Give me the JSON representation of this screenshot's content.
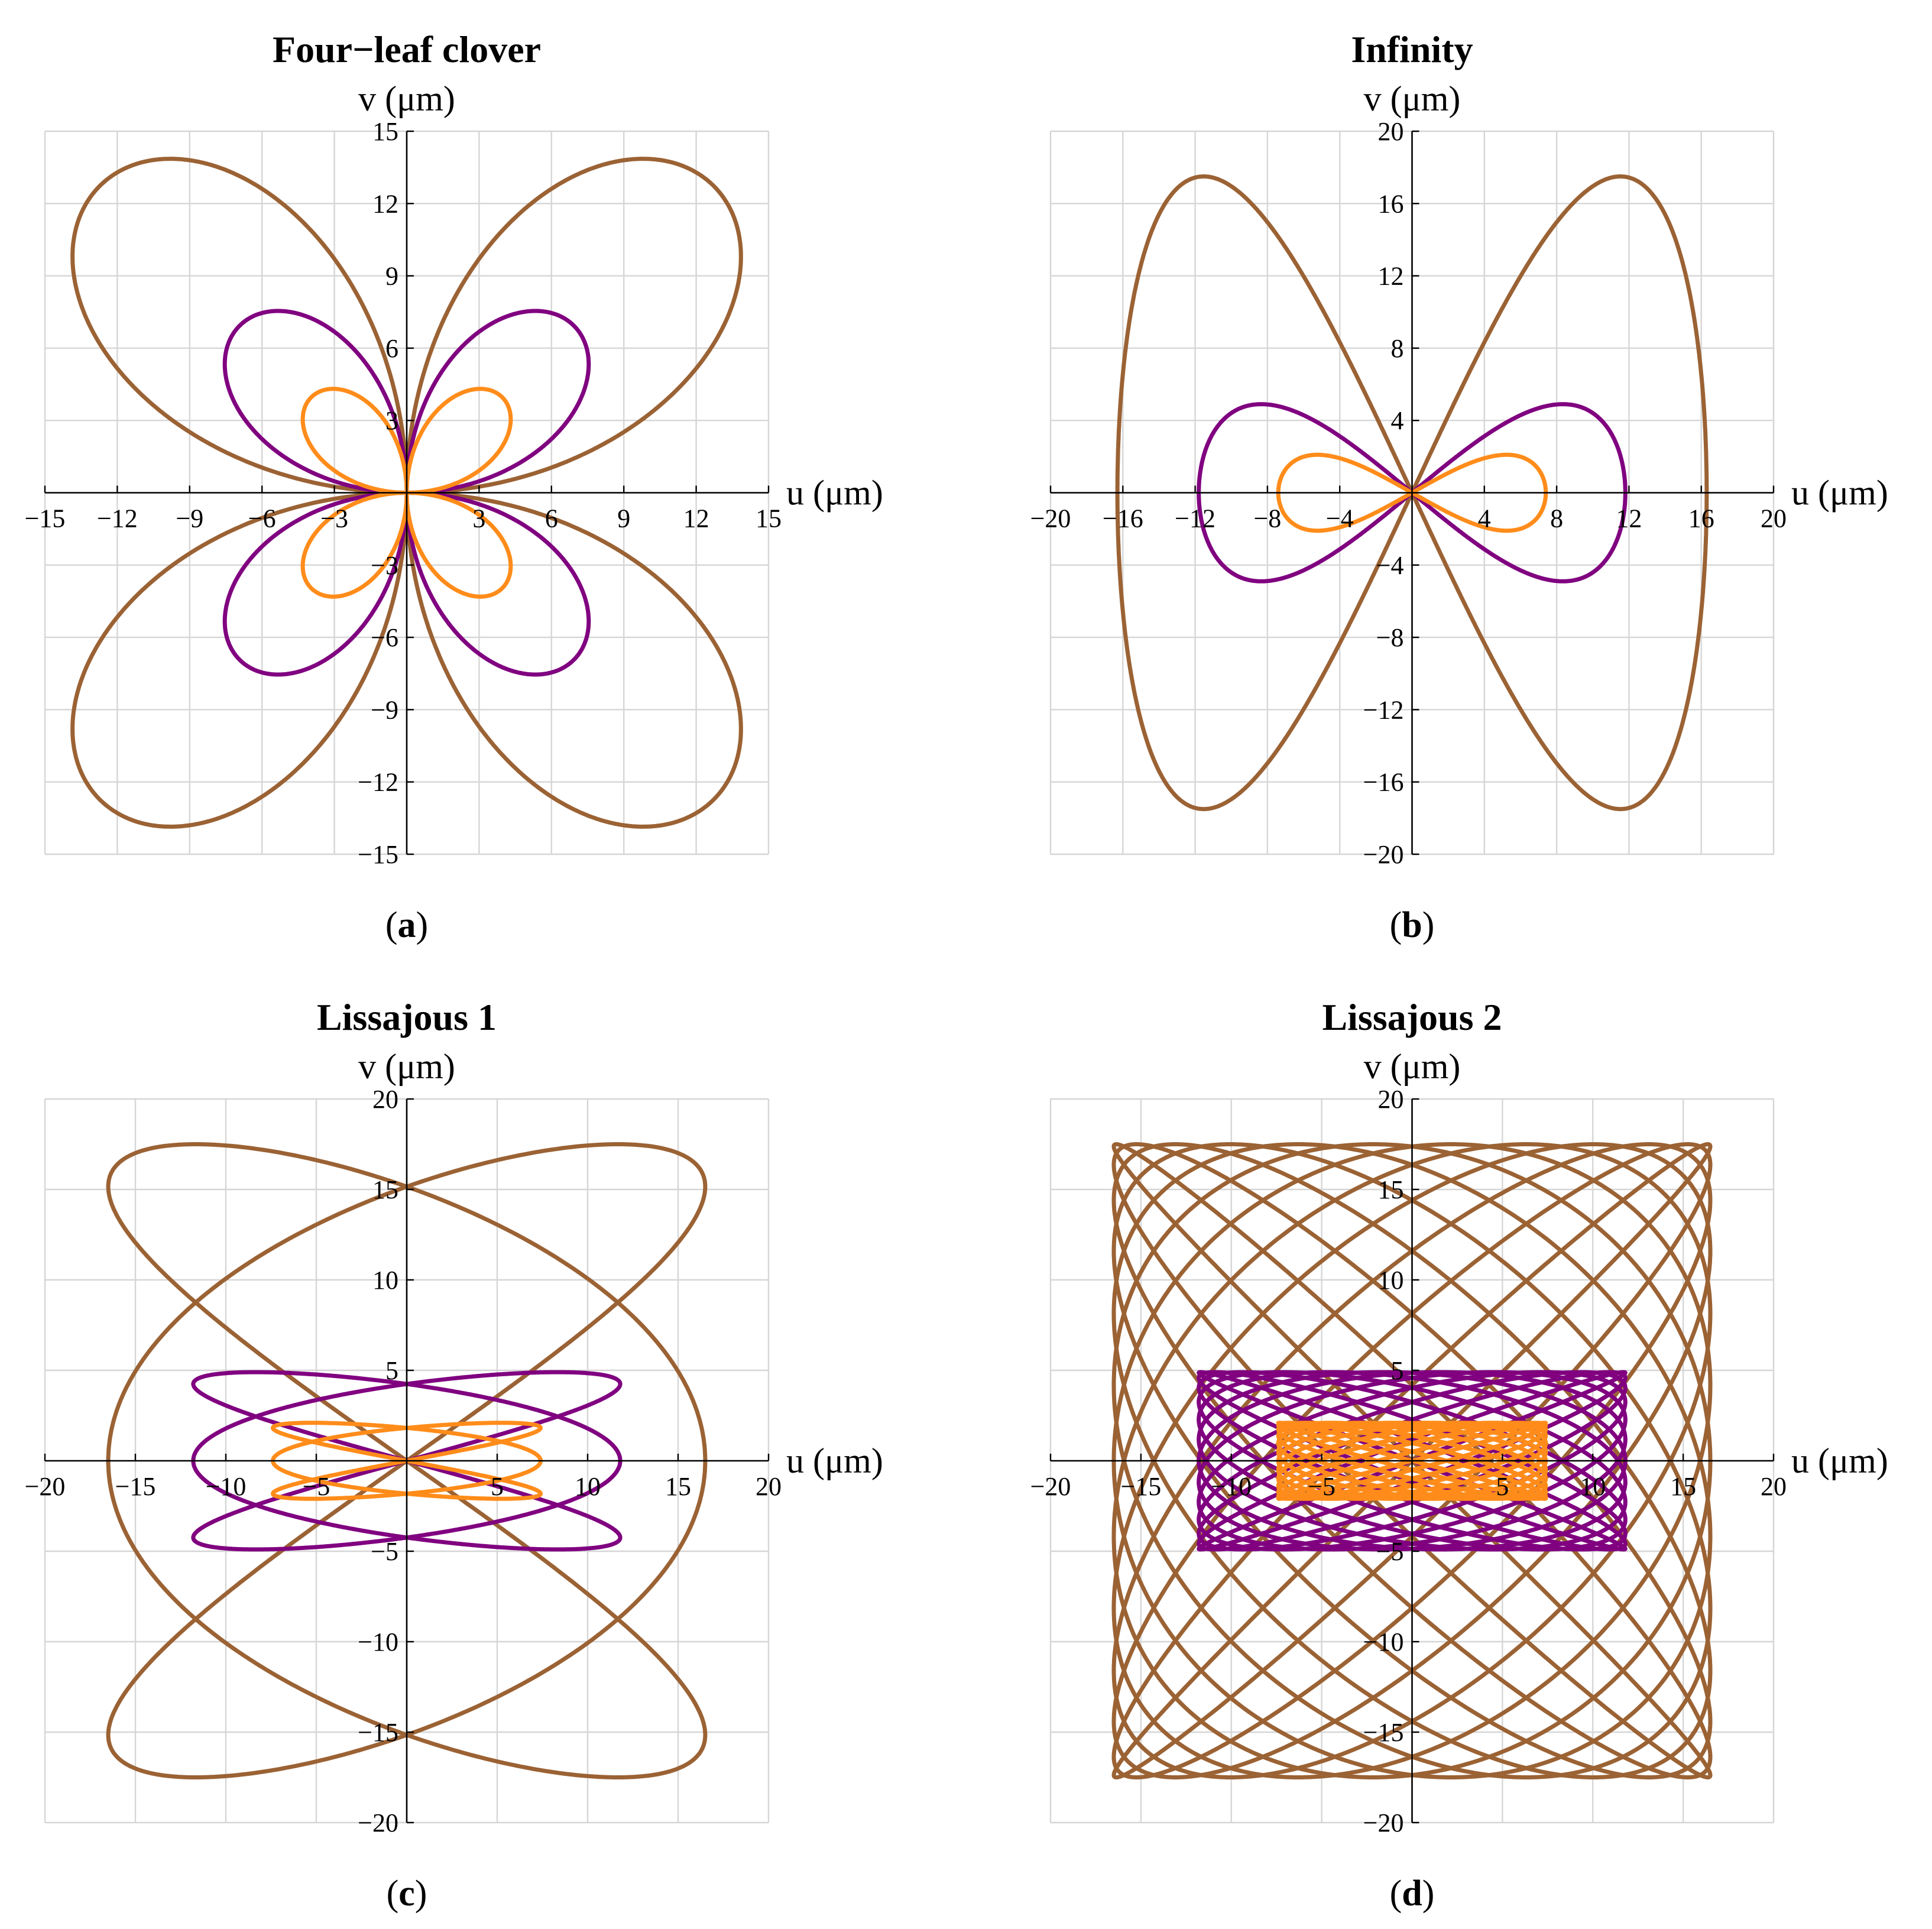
{
  "colors": {
    "outer": "#9b6234",
    "middle": "#800080",
    "inner": "#ff8c1a",
    "grid": "#d6d6d6",
    "axis": "#000000"
  },
  "chart_data": [
    {
      "type": "line",
      "title": "Four−leaf clover",
      "caption": "a",
      "xlabel": "u (μm)",
      "ylabel": "v (μm)",
      "xlim": [
        -15,
        15
      ],
      "ylim": [
        -15,
        15
      ],
      "xticks": [
        -15,
        -12,
        -9,
        -6,
        -3,
        3,
        6,
        9,
        12,
        15
      ],
      "yticks": [
        -15,
        -12,
        -9,
        -6,
        -3,
        3,
        6,
        9,
        12,
        15
      ],
      "xtick_labels": [
        "−15",
        "−12",
        "−9",
        "−6",
        "−3",
        "3",
        "6",
        "9",
        "12",
        "15"
      ],
      "ytick_labels": [
        "−15",
        "−12",
        "−9",
        "−6",
        "−3",
        "3",
        "6",
        "9",
        "12",
        "15"
      ],
      "grid": true,
      "curve": "four-leaf-clover",
      "series": [
        {
          "color_key": "outer",
          "amplitude": 18.0
        },
        {
          "color_key": "middle",
          "amplitude": 9.8
        },
        {
          "color_key": "inner",
          "amplitude": 5.6
        }
      ]
    },
    {
      "type": "line",
      "title": "Infinity",
      "caption": "b",
      "xlabel": "u (μm)",
      "ylabel": "v (μm)",
      "xlim": [
        -20,
        20
      ],
      "ylim": [
        -20,
        20
      ],
      "xticks": [
        -20,
        -16,
        -12,
        -8,
        -4,
        4,
        8,
        12,
        16,
        20
      ],
      "yticks": [
        -20,
        -16,
        -12,
        -8,
        -4,
        4,
        8,
        12,
        16,
        20
      ],
      "xtick_labels": [
        "−20",
        "−16",
        "−12",
        "−8",
        "−4",
        "4",
        "8",
        "12",
        "16",
        "20"
      ],
      "ytick_labels": [
        "−20",
        "−16",
        "−12",
        "−8",
        "−4",
        "4",
        "8",
        "12",
        "16",
        "20"
      ],
      "grid": true,
      "curve": "infinity",
      "series": [
        {
          "color_key": "outer",
          "u_amplitude": 16.3,
          "v_amplitude": 17.5
        },
        {
          "color_key": "middle",
          "u_amplitude": 11.8,
          "v_amplitude": 4.9
        },
        {
          "color_key": "inner",
          "u_amplitude": 7.4,
          "v_amplitude": 2.1
        }
      ]
    },
    {
      "type": "line",
      "title": "Lissajous 1",
      "caption": "c",
      "xlabel": "u (μm)",
      "ylabel": "v (μm)",
      "xlim": [
        -20,
        20
      ],
      "ylim": [
        -20,
        20
      ],
      "xticks": [
        -20,
        -15,
        -10,
        -5,
        5,
        10,
        15,
        20
      ],
      "yticks": [
        -20,
        -15,
        -10,
        -5,
        5,
        10,
        15,
        20
      ],
      "xtick_labels": [
        "−20",
        "−15",
        "−10",
        "−5",
        "5",
        "10",
        "15",
        "20"
      ],
      "ytick_labels": [
        "−20",
        "−15",
        "−10",
        "−5",
        "5",
        "10",
        "15",
        "20"
      ],
      "grid": true,
      "curve": "lissajous",
      "freq_u": 3,
      "freq_v": 2,
      "series": [
        {
          "color_key": "outer",
          "u_amplitude": 16.5,
          "v_amplitude": 17.5
        },
        {
          "color_key": "middle",
          "u_amplitude": 11.8,
          "v_amplitude": 4.9
        },
        {
          "color_key": "inner",
          "u_amplitude": 7.4,
          "v_amplitude": 2.1
        }
      ]
    },
    {
      "type": "line",
      "title": "Lissajous 2",
      "caption": "d",
      "xlabel": "u (μm)",
      "ylabel": "v (μm)",
      "xlim": [
        -20,
        20
      ],
      "ylim": [
        -20,
        20
      ],
      "xticks": [
        -20,
        -15,
        -10,
        -5,
        5,
        10,
        15,
        20
      ],
      "yticks": [
        -20,
        -15,
        -10,
        -5,
        5,
        10,
        15,
        20
      ],
      "xtick_labels": [
        "−20",
        "−15",
        "−10",
        "−5",
        "5",
        "10",
        "15",
        "20"
      ],
      "ytick_labels": [
        "−20",
        "−15",
        "−10",
        "−5",
        "5",
        "10",
        "15",
        "20"
      ],
      "grid": true,
      "curve": "lissajous",
      "freq_u": 13,
      "freq_v": 12,
      "series": [
        {
          "color_key": "outer",
          "u_amplitude": 16.5,
          "v_amplitude": 17.5
        },
        {
          "color_key": "middle",
          "u_amplitude": 11.8,
          "v_amplitude": 4.9
        },
        {
          "color_key": "inner",
          "u_amplitude": 7.4,
          "v_amplitude": 2.1
        }
      ]
    }
  ]
}
